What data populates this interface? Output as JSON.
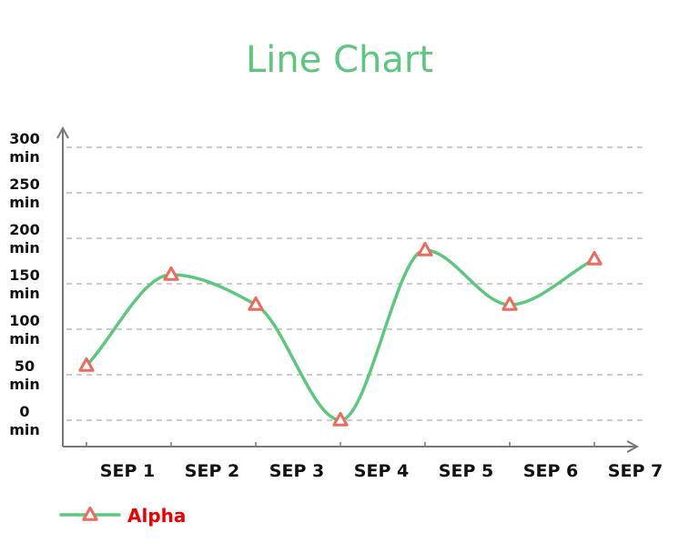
{
  "colors": {
    "title": "#5cc77d",
    "line": "#5cc77d",
    "marker": "#ee6a5c",
    "legend_text": "#ee0000",
    "axis": "#777777",
    "grid": "#999999"
  },
  "chart_data": {
    "type": "line",
    "title": "Line Chart",
    "categories": [
      "SEP 1",
      "SEP 2",
      "SEP 3",
      "SEP 4",
      "SEP 5",
      "SEP 6",
      "SEP 7"
    ],
    "y_ticks": [
      {
        "value": 0,
        "line1": "0",
        "line2": "min"
      },
      {
        "value": 50,
        "line1": "50",
        "line2": "min"
      },
      {
        "value": 100,
        "line1": "100",
        "line2": "min"
      },
      {
        "value": 150,
        "line1": "150",
        "line2": "min"
      },
      {
        "value": 200,
        "line1": "200",
        "line2": "min"
      },
      {
        "value": 250,
        "line1": "250",
        "line2": "min"
      },
      {
        "value": 300,
        "line1": "300",
        "line2": "min"
      }
    ],
    "ylim": [
      0,
      300
    ],
    "grid": true,
    "legend_position": "bottom-left",
    "series": [
      {
        "name": "Alpha",
        "values": [
          60,
          160,
          127,
          0,
          187,
          127,
          177
        ],
        "marker": "triangle",
        "smooth": true
      }
    ]
  }
}
